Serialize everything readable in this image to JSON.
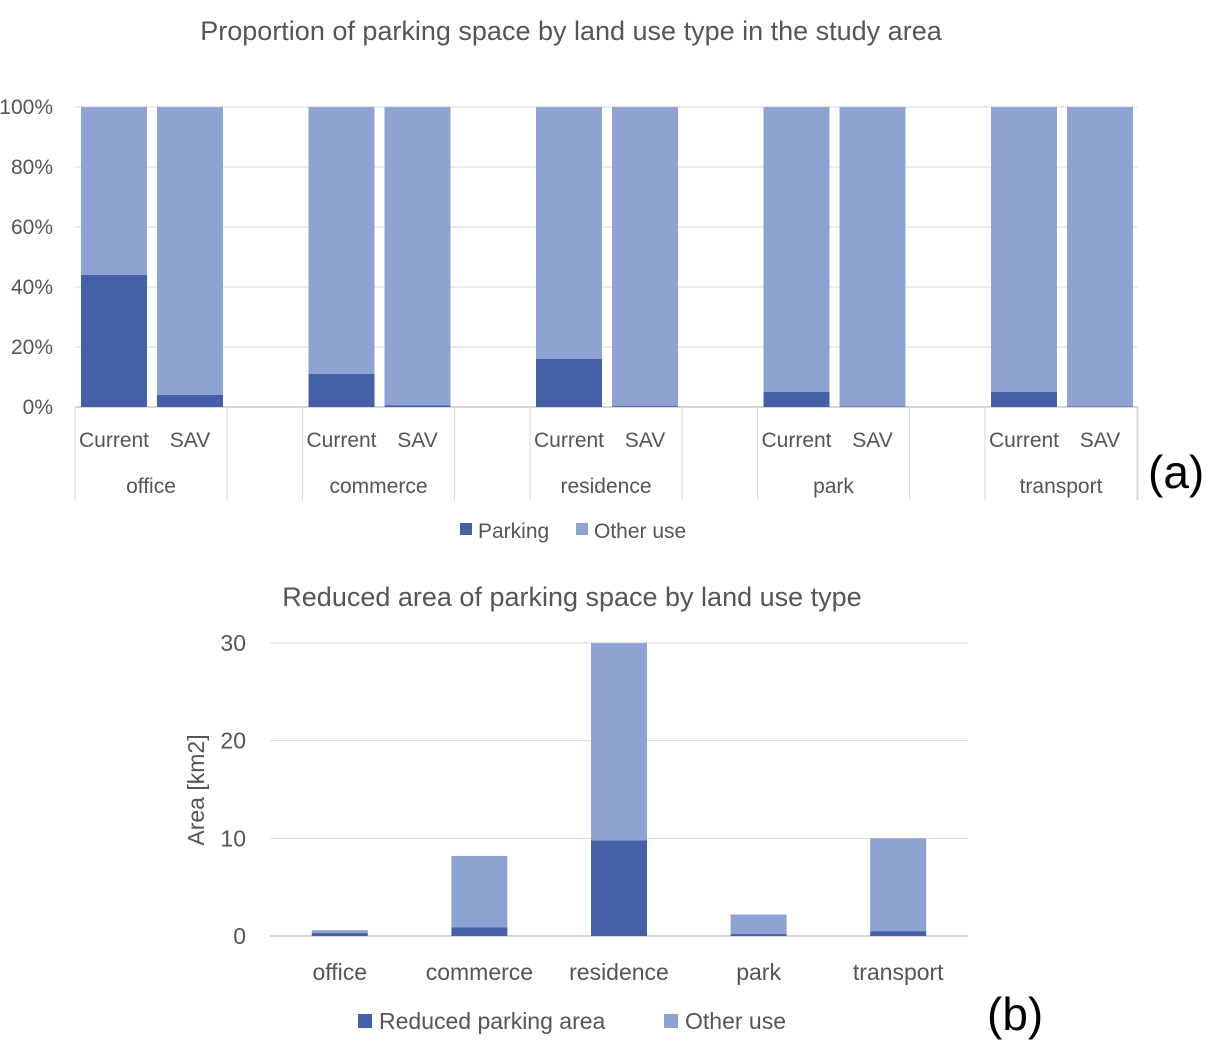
{
  "chart_data": [
    {
      "panel": "(a)",
      "type": "bar",
      "stacked": "percent",
      "title": "Proportion of parking space by land use type in the study area",
      "groups": [
        "office",
        "commerce",
        "residence",
        "park",
        "transport"
      ],
      "subcategories": [
        "Current",
        "SAV"
      ],
      "series": [
        {
          "name": "Parking",
          "color": "#4461a8",
          "values": [
            [
              44,
              4
            ],
            [
              11,
              0.5
            ],
            [
              16,
              0.3
            ],
            [
              5,
              0.2
            ],
            [
              5,
              0.2
            ]
          ]
        },
        {
          "name": "Other use",
          "color": "#8fa3d2",
          "values": [
            [
              56,
              96
            ],
            [
              89,
              99.5
            ],
            [
              84,
              99.7
            ],
            [
              95,
              99.8
            ],
            [
              95,
              99.8
            ]
          ]
        }
      ],
      "y_ticks": [
        "0%",
        "20%",
        "40%",
        "60%",
        "80%",
        "100%"
      ],
      "ylim": [
        0,
        100
      ],
      "legend": [
        "Parking",
        "Other use"
      ]
    },
    {
      "panel": "(b)",
      "type": "bar",
      "stacked": true,
      "title": "Reduced area of parking space by land use type",
      "ylabel": "Area [km2]",
      "categories": [
        "office",
        "commerce",
        "residence",
        "park",
        "transport"
      ],
      "series": [
        {
          "name": "Reduced parking area",
          "color": "#4461a8",
          "values": [
            0.3,
            0.9,
            9.8,
            0.2,
            0.5
          ]
        },
        {
          "name": "Other use",
          "color": "#8fa3d2",
          "values": [
            0.3,
            7.3,
            20.2,
            2.0,
            9.5
          ]
        }
      ],
      "y_ticks": [
        "0",
        "10",
        "20",
        "30"
      ],
      "ylim": [
        0,
        30
      ],
      "legend": [
        "Reduced parking area",
        "Other use"
      ]
    }
  ]
}
